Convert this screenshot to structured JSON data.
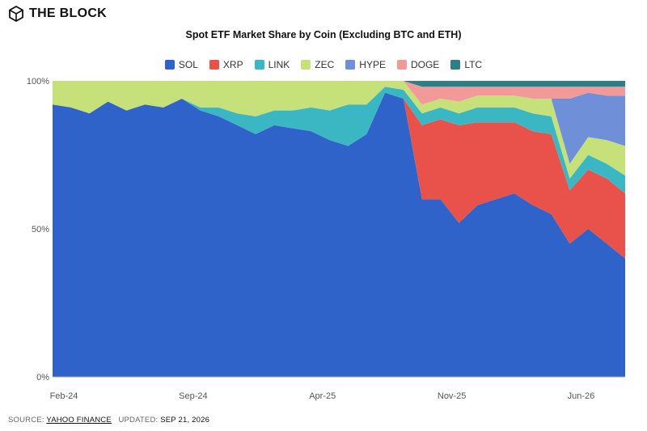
{
  "brand": {
    "name": "THE BLOCK",
    "logo_icon": "cube-logo-icon"
  },
  "chart_data": {
    "type": "area",
    "title": "Spot ETF Market Share by Coin (Excluding BTC and ETH)",
    "stacked": true,
    "xlabel": "",
    "ylabel": "",
    "x_ticks": [
      "Feb-24",
      "Sep-24",
      "Apr-25",
      "Nov-25",
      "Jun-26"
    ],
    "y_ticks": [
      "0%",
      "50%",
      "100%"
    ],
    "ylim": [
      0,
      100
    ],
    "legend_position": "top-center",
    "grid": false,
    "series": [
      {
        "name": "SOL",
        "color": "#2f63c9"
      },
      {
        "name": "XRP",
        "color": "#e8524a"
      },
      {
        "name": "LINK",
        "color": "#3bb7c4"
      },
      {
        "name": "ZEC",
        "color": "#c6e07a"
      },
      {
        "name": "HYPE",
        "color": "#6f8fd8"
      },
      {
        "name": "DOGE",
        "color": "#f29a9a"
      },
      {
        "name": "LTC",
        "color": "#2c7f86"
      }
    ],
    "x": [
      "Feb-24",
      "Mar-24",
      "Apr-24",
      "May-24",
      "Jun-24",
      "Jul-24",
      "Aug-24",
      "Sep-24",
      "Oct-24",
      "Nov-24",
      "Dec-24",
      "Jan-25",
      "Feb-25",
      "Mar-25",
      "Apr-25",
      "May-25",
      "Jun-25",
      "Jul-25",
      "Aug-25",
      "Sep-25",
      "Oct-25",
      "Nov-25",
      "Dec-25",
      "Jan-26",
      "Feb-26",
      "Mar-26",
      "Apr-26",
      "May-26",
      "Jun-26",
      "Jul-26",
      "Aug-26",
      "Sep-26"
    ],
    "values": {
      "SOL": [
        92,
        91,
        89,
        93,
        90,
        92,
        91,
        94,
        90,
        88,
        85,
        82,
        85,
        84,
        83,
        80,
        78,
        82,
        96,
        94,
        60,
        60,
        52,
        58,
        60,
        62,
        58,
        55,
        45,
        50,
        45,
        40
      ],
      "XRP": [
        0,
        0,
        0,
        0,
        0,
        0,
        0,
        0,
        0,
        0,
        0,
        0,
        0,
        0,
        0,
        0,
        0,
        0,
        0,
        0,
        25,
        27,
        33,
        28,
        26,
        24,
        25,
        27,
        18,
        20,
        22,
        22
      ],
      "LINK": [
        0,
        0,
        0,
        0,
        0,
        0,
        0,
        0,
        1,
        3,
        4,
        6,
        5,
        6,
        8,
        10,
        14,
        10,
        2,
        3,
        4,
        4,
        4,
        5,
        5,
        5,
        6,
        6,
        4,
        5,
        5,
        6
      ],
      "ZEC": [
        8,
        9,
        11,
        7,
        10,
        8,
        9,
        6,
        9,
        9,
        11,
        12,
        10,
        10,
        9,
        10,
        8,
        8,
        2,
        3,
        3,
        3,
        4,
        4,
        4,
        4,
        5,
        6,
        5,
        6,
        8,
        10
      ],
      "HYPE": [
        0,
        0,
        0,
        0,
        0,
        0,
        0,
        0,
        0,
        0,
        0,
        0,
        0,
        0,
        0,
        0,
        0,
        0,
        0,
        0,
        0,
        0,
        0,
        0,
        0,
        0,
        0,
        0,
        22,
        15,
        15,
        17
      ],
      "DOGE": [
        0,
        0,
        0,
        0,
        0,
        0,
        0,
        0,
        0,
        0,
        0,
        0,
        0,
        0,
        0,
        0,
        0,
        0,
        0,
        0,
        6,
        4,
        5,
        3,
        3,
        3,
        4,
        4,
        4,
        2,
        3,
        3
      ],
      "LTC": [
        0,
        0,
        0,
        0,
        0,
        0,
        0,
        0,
        0,
        0,
        0,
        0,
        0,
        0,
        0,
        0,
        0,
        0,
        0,
        0,
        2,
        2,
        2,
        2,
        2,
        2,
        2,
        2,
        2,
        2,
        2,
        2
      ]
    }
  },
  "footer": {
    "source_label": "SOURCE:",
    "source_name": "YAHOO FINANCE",
    "updated_label": "UPDATED:",
    "updated_date": "SEP 21, 2026"
  }
}
